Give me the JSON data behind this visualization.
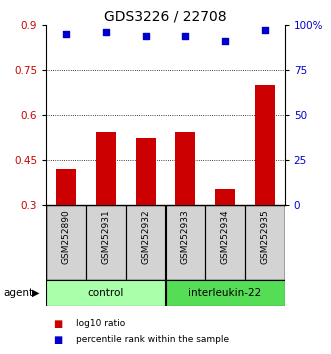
{
  "title": "GDS3226 / 22708",
  "categories": [
    "GSM252890",
    "GSM252931",
    "GSM252932",
    "GSM252933",
    "GSM252934",
    "GSM252935"
  ],
  "bar_values": [
    0.42,
    0.545,
    0.525,
    0.545,
    0.355,
    0.7
  ],
  "scatter_values": [
    95,
    96,
    94,
    94,
    91,
    97
  ],
  "bar_color": "#cc0000",
  "scatter_color": "#0000cc",
  "ylim_left": [
    0.3,
    0.9
  ],
  "ylim_right": [
    0,
    100
  ],
  "yticks_left": [
    0.3,
    0.45,
    0.6,
    0.75,
    0.9
  ],
  "ytick_labels_left": [
    "0.3",
    "0.45",
    "0.6",
    "0.75",
    "0.9"
  ],
  "yticks_right": [
    0,
    25,
    50,
    75,
    100
  ],
  "ytick_labels_right": [
    "0",
    "25",
    "50",
    "75",
    "100%"
  ],
  "grid_values": [
    0.45,
    0.6,
    0.75
  ],
  "groups": [
    {
      "label": "control",
      "start": 0,
      "end": 3,
      "color": "#aaffaa"
    },
    {
      "label": "interleukin-22",
      "start": 3,
      "end": 6,
      "color": "#55dd55"
    }
  ],
  "agent_label": "agent",
  "legend_bar_label": "log10 ratio",
  "legend_scatter_label": "percentile rank within the sample",
  "bar_color_hex": "#cc0000",
  "scatter_color_hex": "#0000cc",
  "title_fontsize": 10,
  "tick_fontsize": 7.5,
  "label_fontsize": 7.5,
  "grey_color": "#d3d3d3"
}
